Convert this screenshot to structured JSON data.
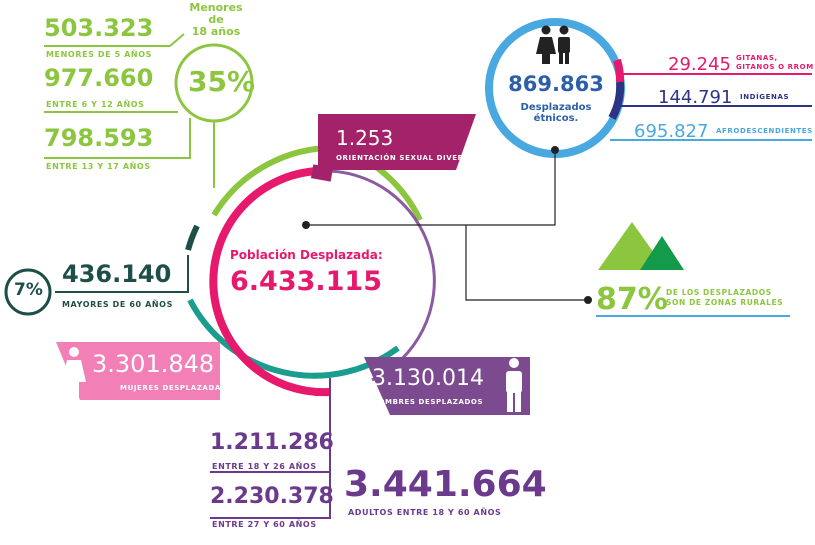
{
  "colors": {
    "green": "#8cc63f",
    "teal": "#1a9c8e",
    "magenta": "#e6196d",
    "purple": "#6b3a8d",
    "blue": "#4aa8e0",
    "navy": "#2d3484",
    "darkteal": "#1d4e4a",
    "pink": "#f27fb6",
    "lightpurple": "#8c5a9e",
    "lightgreen": "#8cc63f",
    "darkgreen": "#139a4a"
  },
  "minors": {
    "title": "Menores de\n18 años",
    "percent": "35%",
    "items": [
      {
        "value": "503.323",
        "label": "MENORES DE 5 AÑOS"
      },
      {
        "value": "977.660",
        "label": "ENTRE 6 Y 12 AÑOS"
      },
      {
        "value": "798.593",
        "label": "ENTRE 13 Y 17 AÑOS"
      }
    ]
  },
  "center": {
    "title": "Población Desplazada:",
    "value": "6.433.115"
  },
  "diverse": {
    "value": "1.253",
    "label": "ORIENTACIÓN SEXUAL DIVERSA"
  },
  "elderly": {
    "percent": "7%",
    "value": "436.140",
    "label": "MAYORES DE 60 AÑOS"
  },
  "women": {
    "value": "3.301.848",
    "label": "MUJERES DESPLAZADAS",
    "icon": "woman-icon"
  },
  "men": {
    "value": "3.130.014",
    "label": "HOMBRES DESPLAZADOS",
    "icon": "man-icon"
  },
  "adults": {
    "items": [
      {
        "value": "1.211.286",
        "label": "ENTRE 18 Y 26 AÑOS"
      },
      {
        "value": "2.230.378",
        "label": "ENTRE 27 Y 60 AÑOS"
      }
    ],
    "total_value": "3.441.664",
    "total_label": "ADULTOS ENTRE 18 Y 60 AÑOS"
  },
  "ethnic": {
    "value": "869.863",
    "label": "Desplazados\nétnicos.",
    "icon": "couple-icon",
    "items": [
      {
        "value": "29.245",
        "label": "GITANAS,\nGITANOS O RROM"
      },
      {
        "value": "144.791",
        "label": "INDÍGENAS"
      },
      {
        "value": "695.827",
        "label": "AFRODESCENDIENTES"
      }
    ]
  },
  "rural": {
    "percent": "87%",
    "label": "DE LOS DESPLAZADOS\nSON DE ZONAS RURALES",
    "icon": "mountains-icon"
  }
}
